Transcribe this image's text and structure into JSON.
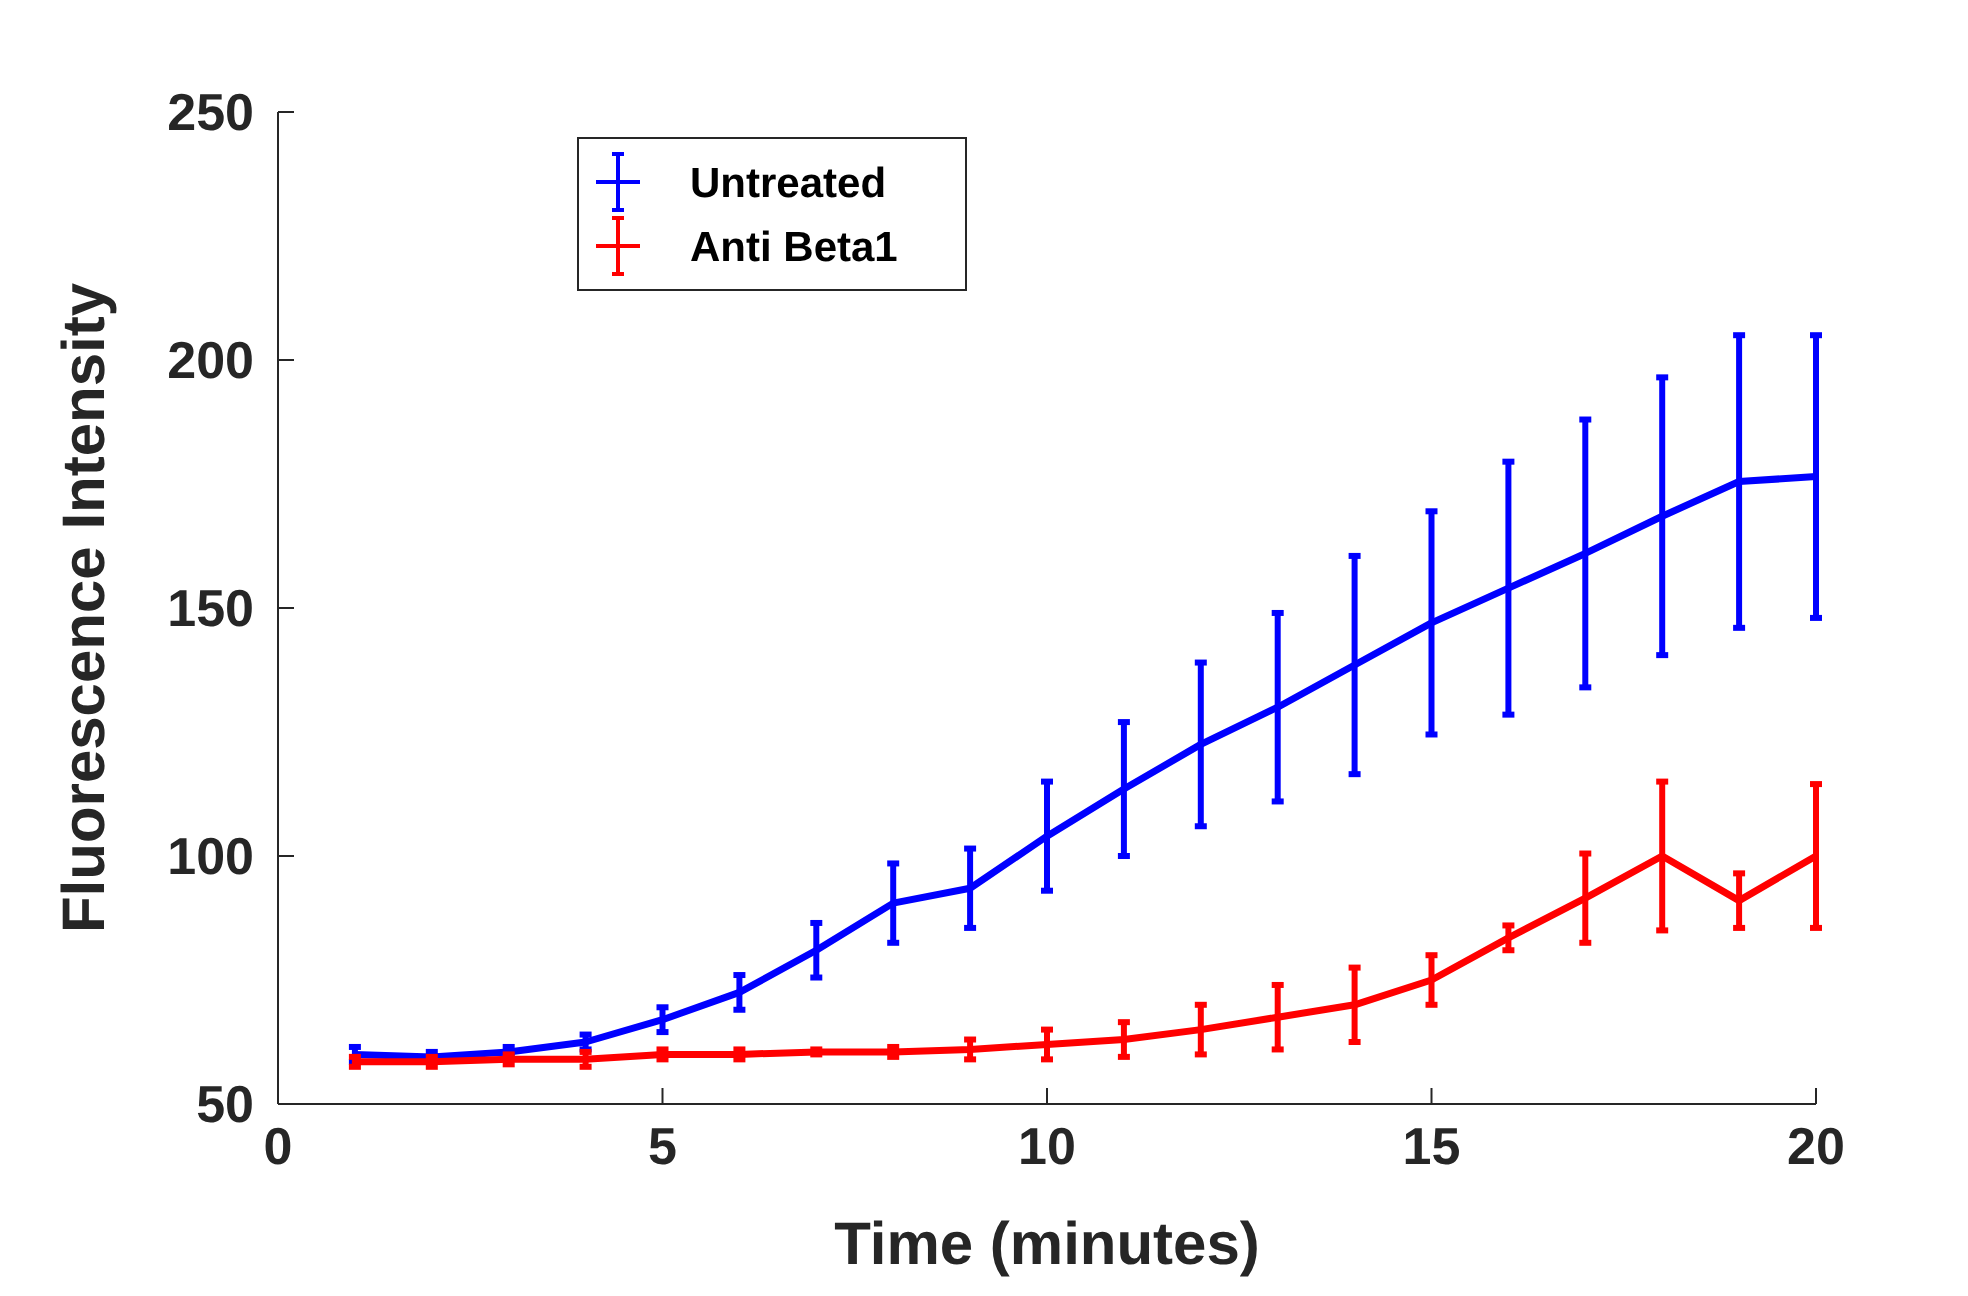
{
  "chart_data": {
    "type": "line",
    "xlabel": "Time (minutes)",
    "ylabel": "Fluorescence Intensity",
    "x": [
      1,
      2,
      3,
      4,
      5,
      6,
      7,
      8,
      9,
      10,
      11,
      12,
      13,
      14,
      15,
      16,
      17,
      18,
      19,
      20
    ],
    "series": [
      {
        "name": "Untreated",
        "color": "#0000ff",
        "values": [
          60,
          59.5,
          60.5,
          62.5,
          67,
          72.5,
          81,
          90.5,
          93.5,
          104,
          113.5,
          122.5,
          130,
          138.5,
          147,
          154,
          161,
          168.5,
          175.5,
          176.5
        ],
        "errors": [
          1.5,
          1,
          1,
          1.5,
          2.5,
          3.5,
          5.5,
          8,
          8,
          11,
          13.5,
          16.5,
          19,
          22,
          22.5,
          25.5,
          27,
          28,
          29.5,
          28.5
        ]
      },
      {
        "name": "Anti Beta1",
        "color": "#ff0000",
        "values": [
          58.5,
          58.5,
          59,
          59,
          60,
          60,
          60.5,
          60.5,
          61,
          62,
          63,
          65,
          67.5,
          70,
          75,
          83.5,
          91.5,
          100,
          91,
          100
        ],
        "errors": [
          1,
          1,
          1,
          1.5,
          1,
          1,
          0.5,
          1,
          2,
          3,
          3.5,
          5,
          6.5,
          7.5,
          5,
          2.5,
          9,
          15,
          5.5,
          14.5
        ]
      }
    ],
    "xlim": [
      0,
      20
    ],
    "xticks": [
      0,
      5,
      10,
      15,
      20
    ],
    "ylim": [
      50,
      250
    ],
    "yticks": [
      50,
      100,
      150,
      200,
      250
    ],
    "grid": false,
    "legend": "top left",
    "marker": "none",
    "line_style": "solid"
  }
}
